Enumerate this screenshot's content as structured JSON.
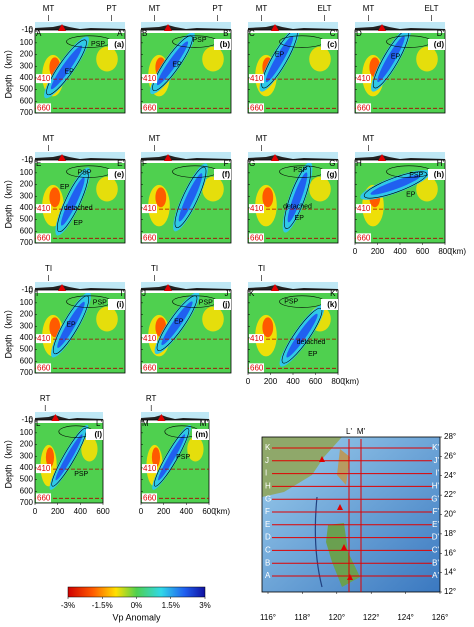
{
  "depth_axis": {
    "label": "Depth（km）",
    "ticks": [
      -10,
      0,
      100,
      200,
      300,
      400,
      500,
      600,
      700
    ],
    "range": [
      -10,
      700
    ]
  },
  "depth_lines": [
    410,
    660
  ],
  "panels": [
    {
      "letter": "(a)",
      "start": "A",
      "end": "A'",
      "markers": [
        "MT",
        "PT"
      ],
      "annotations": [
        "PSP",
        "EP"
      ]
    },
    {
      "letter": "(b)",
      "start": "B",
      "end": "B'",
      "markers": [
        "MT",
        "PT"
      ],
      "annotations": [
        "PSP",
        "EP"
      ]
    },
    {
      "letter": "(c)",
      "start": "C",
      "end": "C'",
      "markers": [
        "MT",
        "ELT"
      ],
      "annotations": [
        "EP"
      ]
    },
    {
      "letter": "(d)",
      "start": "D",
      "end": "D'",
      "markers": [
        "MT",
        "ELT"
      ],
      "annotations": [
        "EP"
      ]
    },
    {
      "letter": "(e)",
      "start": "E",
      "end": "E'",
      "markers": [
        "MT"
      ],
      "annotations": [
        "PSP",
        "EP",
        "detached",
        "EP"
      ]
    },
    {
      "letter": "(f)",
      "start": "F",
      "end": "F'",
      "markers": [
        "MT"
      ],
      "annotations": []
    },
    {
      "letter": "(g)",
      "start": "G",
      "end": "G'",
      "markers": [
        "MT"
      ],
      "annotations": [
        "PSP",
        "detached",
        "EP"
      ]
    },
    {
      "letter": "(h)",
      "start": "H",
      "end": "H'",
      "markers": [
        "MT"
      ],
      "annotations": [
        "PSP",
        "EP"
      ],
      "xticks": [
        0,
        200,
        400,
        600,
        800
      ],
      "x_unit": "(km)"
    },
    {
      "letter": "(i)",
      "start": "I",
      "end": "I'",
      "markers": [
        "TI"
      ],
      "annotations": [
        "PSP",
        "EP"
      ]
    },
    {
      "letter": "(j)",
      "start": "J",
      "end": "J'",
      "markers": [
        "TI"
      ],
      "annotations": [
        "PSP",
        "EP"
      ]
    },
    {
      "letter": "(k)",
      "start": "K",
      "end": "K'",
      "markers": [
        "TI"
      ],
      "annotations": [
        "PSP",
        "detached",
        "EP"
      ],
      "xticks": [
        0,
        200,
        400,
        600,
        800
      ],
      "x_unit": "(km)"
    },
    {
      "letter": "(l)",
      "start": "L",
      "end": "L'",
      "markers": [
        "RT"
      ],
      "annotations": [
        "PSP"
      ],
      "xticks": [
        0,
        200,
        400,
        600
      ]
    },
    {
      "letter": "(m)",
      "start": "M",
      "end": "M'",
      "markers": [
        "RT"
      ],
      "annotations": [
        "PSP"
      ],
      "xticks": [
        0,
        200,
        400,
        600
      ],
      "x_unit": "(km)"
    }
  ],
  "colorbar": {
    "ticks": [
      "-3%",
      "-1.5%",
      "0%",
      "1.5%",
      "3%"
    ],
    "label": "Vp Anomaly"
  },
  "map": {
    "lat_ticks": [
      "28°",
      "26°",
      "24°",
      "22°",
      "20°",
      "18°",
      "16°",
      "14°",
      "12°"
    ],
    "lon_ticks": [
      "116°",
      "118°",
      "120°",
      "122°",
      "124°",
      "126°"
    ]
  }
}
